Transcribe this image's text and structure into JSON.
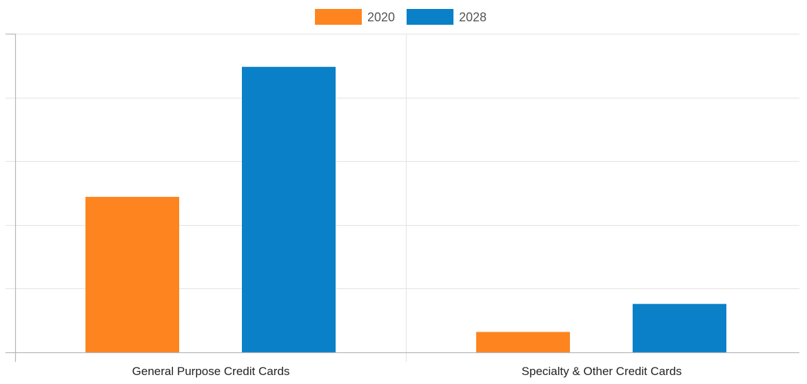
{
  "chart_data": {
    "type": "bar",
    "title": "",
    "xlabel": "",
    "ylabel": "",
    "categories": [
      "General Purpose Credit Cards",
      "Specialty & Other Credit Cards"
    ],
    "series": [
      {
        "name": "2020",
        "color": "#fe8420",
        "values": [
          122,
          16
        ]
      },
      {
        "name": "2028",
        "color": "#0a80c8",
        "values": [
          224,
          38
        ]
      }
    ],
    "ylim": [
      0,
      250
    ],
    "y_tick_labels_visible": false,
    "grid": true,
    "legend_position": "top-center"
  }
}
